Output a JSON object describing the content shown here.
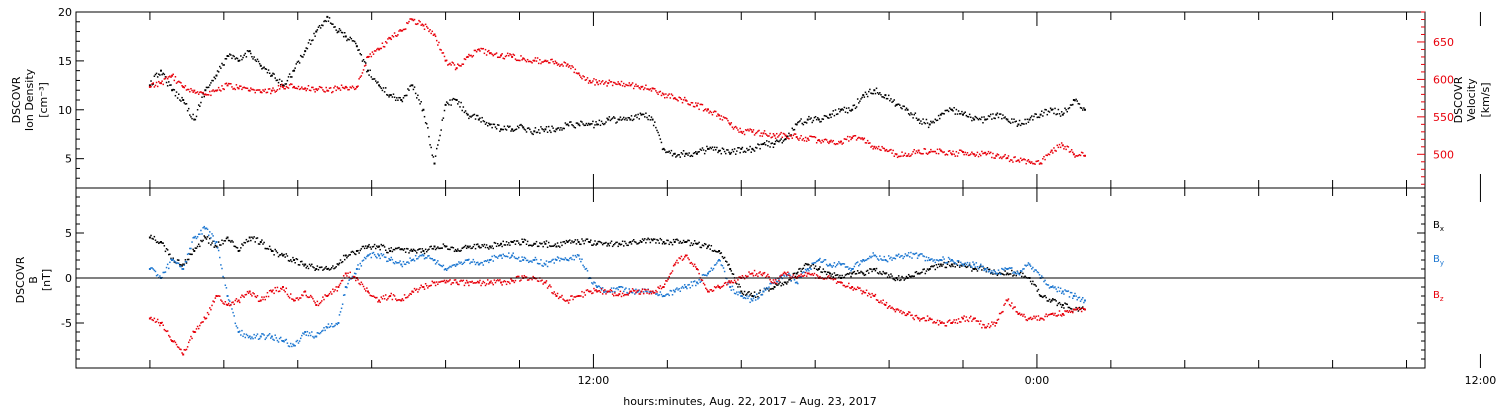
{
  "chart_data": [
    {
      "type": "scatter",
      "panel": "plasma",
      "ylabel_left": [
        "DSCOVR",
        "Ion Density",
        "[cm⁻³]"
      ],
      "ylabel_right": [
        "DSCOVR",
        "Velocity",
        "[km/s]"
      ],
      "ylim_left": [
        2,
        20
      ],
      "ylim_right": [
        455,
        690
      ],
      "yticks_left": [
        5,
        10,
        15,
        20
      ],
      "yticks_right": [
        500,
        550,
        600,
        650
      ],
      "grid": false,
      "series": [
        {
          "name": "Ion Density",
          "axis": "left",
          "color": "#000000",
          "x": [
            0.0,
            0.3,
            0.6,
            0.9,
            1.2,
            1.5,
            1.8,
            2.1,
            2.4,
            2.7,
            3.0,
            3.3,
            3.6,
            3.9,
            4.2,
            4.5,
            4.8,
            5.1,
            5.3,
            5.6,
            5.9,
            6.2,
            6.5,
            6.8,
            7.1,
            7.4,
            7.7,
            8.0,
            8.3,
            8.6,
            8.9,
            9.2,
            9.5,
            9.8,
            10.1,
            10.4,
            10.7,
            11.0,
            11.3,
            11.6,
            11.9,
            12.1,
            12.4,
            12.7,
            13.0,
            13.3,
            13.6,
            13.9,
            14.2,
            14.5,
            14.8,
            15.1,
            15.4,
            15.7,
            16.0,
            16.3,
            16.6,
            16.9,
            17.2,
            17.5,
            17.8,
            18.1,
            18.4,
            18.7,
            19.0,
            19.3,
            19.6,
            19.9,
            20.2,
            20.5,
            20.8,
            21.1,
            21.4,
            21.7,
            22.0,
            22.3,
            22.6,
            22.9,
            23.2,
            23.5,
            23.8,
            24.1,
            24.4,
            24.7,
            25.0,
            25.3
          ],
          "y": [
            12.5,
            14.0,
            12.0,
            11.0,
            9.0,
            12.0,
            13.5,
            15.5,
            15.0,
            16.0,
            14.5,
            13.5,
            12.5,
            14.0,
            16.0,
            18.0,
            19.5,
            18.0,
            17.5,
            16.5,
            14.0,
            12.5,
            11.5,
            11.0,
            12.5,
            10.0,
            4.5,
            10.5,
            11.0,
            9.5,
            9.0,
            8.5,
            8.0,
            8.0,
            8.2,
            7.8,
            8.0,
            8.0,
            8.5,
            8.5,
            8.5,
            8.5,
            9.0,
            9.0,
            9.0,
            9.5,
            9.0,
            6.0,
            5.5,
            5.5,
            5.5,
            6.0,
            5.8,
            5.5,
            6.0,
            6.0,
            6.5,
            6.5,
            7.0,
            8.5,
            9.0,
            9.0,
            9.5,
            10.0,
            10.0,
            11.5,
            12.0,
            11.5,
            10.5,
            10.0,
            9.0,
            8.5,
            9.5,
            10.0,
            9.5,
            9.0,
            9.0,
            9.5,
            9.0,
            8.5,
            9.0,
            9.5,
            10.0,
            9.5,
            11.0,
            10.0
          ]
        },
        {
          "name": "Velocity",
          "axis": "right",
          "color": "#e8000b",
          "x": [
            0.0,
            0.3,
            0.6,
            0.9,
            1.2,
            1.5,
            1.8,
            2.1,
            2.4,
            2.7,
            3.0,
            3.3,
            3.6,
            3.9,
            4.2,
            4.5,
            4.8,
            5.1,
            5.3,
            5.6,
            5.9,
            6.2,
            6.5,
            6.8,
            7.1,
            7.4,
            7.7,
            8.0,
            8.3,
            8.6,
            8.9,
            9.2,
            9.5,
            9.8,
            10.1,
            10.4,
            10.7,
            11.0,
            11.3,
            11.6,
            11.9,
            12.1,
            12.4,
            12.7,
            13.0,
            13.3,
            13.6,
            13.9,
            14.2,
            14.5,
            14.8,
            15.1,
            15.4,
            15.7,
            16.0,
            16.3,
            16.6,
            16.9,
            17.2,
            17.5,
            17.8,
            18.1,
            18.4,
            18.7,
            19.0,
            19.3,
            19.6,
            19.9,
            20.2,
            20.5,
            20.8,
            21.1,
            21.4,
            21.7,
            22.0,
            22.3,
            22.6,
            22.9,
            23.2,
            23.5,
            23.8,
            24.1,
            24.4,
            24.7,
            25.0,
            25.3
          ],
          "y": [
            590,
            595,
            605,
            590,
            585,
            580,
            585,
            592,
            588,
            585,
            583,
            585,
            590,
            590,
            588,
            587,
            585,
            588,
            590,
            590,
            630,
            640,
            655,
            665,
            680,
            672,
            660,
            625,
            615,
            630,
            640,
            635,
            632,
            630,
            628,
            625,
            625,
            622,
            620,
            608,
            598,
            596,
            595,
            594,
            592,
            590,
            588,
            580,
            575,
            572,
            565,
            560,
            552,
            540,
            530,
            530,
            528,
            525,
            525,
            523,
            521,
            519,
            517,
            517,
            522,
            520,
            510,
            505,
            500,
            498,
            505,
            503,
            505,
            500,
            503,
            500,
            502,
            498,
            495,
            492,
            490,
            488,
            505,
            512,
            500,
            498
          ]
        }
      ]
    },
    {
      "type": "scatter",
      "panel": "magnetic",
      "ylabel_left": [
        "DSCOVR",
        "B",
        "[nT]"
      ],
      "ylim": [
        -10,
        10
      ],
      "yticks": [
        -5,
        0,
        5
      ],
      "zero_line": true,
      "grid": false,
      "legend_position": "right",
      "series": [
        {
          "name": "Bx",
          "color": "#000000",
          "x": [
            0.0,
            0.3,
            0.6,
            0.9,
            1.2,
            1.5,
            1.8,
            2.1,
            2.4,
            2.7,
            3.0,
            3.3,
            3.6,
            3.9,
            4.2,
            4.5,
            4.8,
            5.1,
            5.3,
            5.6,
            5.9,
            6.2,
            6.5,
            6.8,
            7.1,
            7.4,
            7.7,
            8.0,
            8.3,
            8.6,
            8.9,
            9.2,
            9.5,
            9.8,
            10.1,
            10.4,
            10.7,
            11.0,
            11.3,
            11.6,
            11.9,
            12.1,
            12.4,
            12.7,
            13.0,
            13.3,
            13.6,
            13.9,
            14.2,
            14.5,
            14.8,
            15.1,
            15.4,
            15.7,
            16.0,
            16.3,
            16.6,
            16.9,
            17.2,
            17.5,
            17.8,
            18.1,
            18.4,
            18.7,
            19.0,
            19.3,
            19.6,
            19.9,
            20.2,
            20.5,
            20.8,
            21.1,
            21.4,
            21.7,
            22.0,
            22.3,
            22.6,
            22.9,
            23.2,
            23.5,
            23.8,
            24.1,
            24.4,
            24.7,
            25.0,
            25.3
          ],
          "y": [
            4.5,
            4.0,
            2.0,
            1.5,
            3.0,
            4.5,
            3.5,
            4.5,
            3.0,
            4.5,
            4.0,
            3.0,
            2.5,
            2.0,
            1.5,
            1.0,
            1.0,
            1.5,
            2.5,
            3.0,
            3.5,
            3.5,
            3.0,
            3.2,
            3.0,
            3.0,
            3.5,
            3.5,
            3.0,
            3.5,
            3.5,
            3.5,
            3.8,
            4.0,
            4.0,
            3.8,
            3.8,
            3.5,
            4.0,
            4.0,
            4.0,
            3.8,
            3.8,
            3.8,
            4.0,
            4.0,
            4.2,
            4.0,
            4.0,
            4.0,
            3.8,
            3.5,
            3.0,
            1.0,
            -1.5,
            -2.0,
            -1.5,
            -1.0,
            -0.5,
            0.5,
            1.5,
            1.0,
            0.5,
            0.0,
            0.5,
            0.5,
            1.0,
            0.5,
            0.0,
            0.0,
            0.5,
            1.0,
            1.5,
            1.5,
            1.5,
            1.0,
            1.0,
            0.5,
            0.5,
            0.5,
            0.0,
            -2.0,
            -2.5,
            -3.0,
            -3.5,
            -3.5
          ]
        },
        {
          "name": "By",
          "color": "#1f78d1",
          "x": [
            0.0,
            0.3,
            0.6,
            0.9,
            1.2,
            1.5,
            1.8,
            2.1,
            2.4,
            2.7,
            3.0,
            3.3,
            3.6,
            3.9,
            4.2,
            4.5,
            4.8,
            5.1,
            5.3,
            5.6,
            5.9,
            6.2,
            6.5,
            6.8,
            7.1,
            7.4,
            7.7,
            8.0,
            8.3,
            8.6,
            8.9,
            9.2,
            9.5,
            9.8,
            10.1,
            10.4,
            10.7,
            11.0,
            11.3,
            11.6,
            11.9,
            12.1,
            12.4,
            12.7,
            13.0,
            13.3,
            13.6,
            13.9,
            14.2,
            14.5,
            14.8,
            15.1,
            15.4,
            15.7,
            16.0,
            16.3,
            16.6,
            16.9,
            17.2,
            17.5,
            17.8,
            18.1,
            18.4,
            18.7,
            19.0,
            19.3,
            19.6,
            19.9,
            20.2,
            20.5,
            20.8,
            21.1,
            21.4,
            21.7,
            22.0,
            22.3,
            22.6,
            22.9,
            23.2,
            23.5,
            23.8,
            24.1,
            24.4,
            24.7,
            25.0,
            25.3
          ],
          "y": [
            1.0,
            0.0,
            2.0,
            1.0,
            4.5,
            5.5,
            4.0,
            -2.0,
            -6.0,
            -6.5,
            -6.5,
            -6.5,
            -7.0,
            -7.5,
            -6.0,
            -6.5,
            -5.5,
            -5.0,
            -1.0,
            1.0,
            2.5,
            2.5,
            2.0,
            1.5,
            2.0,
            2.5,
            2.0,
            1.0,
            1.5,
            2.0,
            1.5,
            2.0,
            2.5,
            2.5,
            2.0,
            2.0,
            1.5,
            2.0,
            2.0,
            2.5,
            0.0,
            -1.0,
            -1.5,
            -1.0,
            -1.5,
            -1.5,
            -1.5,
            -2.0,
            -1.5,
            -1.0,
            -0.5,
            0.5,
            2.0,
            -1.0,
            -2.0,
            -2.5,
            -1.5,
            -0.5,
            0.5,
            -0.5,
            1.0,
            2.0,
            1.5,
            1.5,
            1.0,
            2.0,
            2.5,
            2.0,
            2.5,
            2.5,
            2.5,
            2.0,
            2.0,
            2.0,
            1.5,
            1.5,
            1.0,
            0.5,
            1.0,
            0.5,
            1.5,
            0.0,
            -1.0,
            -1.5,
            -2.0,
            -2.5
          ]
        },
        {
          "name": "Bz",
          "color": "#e8000b",
          "x": [
            0.0,
            0.3,
            0.6,
            0.9,
            1.2,
            1.5,
            1.8,
            2.1,
            2.4,
            2.7,
            3.0,
            3.3,
            3.6,
            3.9,
            4.2,
            4.5,
            4.8,
            5.1,
            5.3,
            5.6,
            5.9,
            6.2,
            6.5,
            6.8,
            7.1,
            7.4,
            7.7,
            8.0,
            8.3,
            8.6,
            8.9,
            9.2,
            9.5,
            9.8,
            10.1,
            10.4,
            10.7,
            11.0,
            11.3,
            11.6,
            11.9,
            12.1,
            12.4,
            12.7,
            13.0,
            13.3,
            13.6,
            13.9,
            14.2,
            14.5,
            14.8,
            15.1,
            15.4,
            15.7,
            16.0,
            16.3,
            16.6,
            16.9,
            17.2,
            17.5,
            17.8,
            18.1,
            18.4,
            18.7,
            19.0,
            19.3,
            19.6,
            19.9,
            20.2,
            20.5,
            20.8,
            21.1,
            21.4,
            21.7,
            22.0,
            22.3,
            22.6,
            22.9,
            23.2,
            23.5,
            23.8,
            24.1,
            24.4,
            24.7,
            25.0,
            25.3
          ],
          "y": [
            -4.5,
            -5.0,
            -7.0,
            -8.5,
            -6.0,
            -4.5,
            -2.0,
            -3.0,
            -2.5,
            -1.5,
            -2.5,
            -1.5,
            -1.0,
            -2.5,
            -1.5,
            -3.0,
            -2.0,
            -1.0,
            0.5,
            0.0,
            -1.5,
            -2.5,
            -2.0,
            -2.5,
            -1.5,
            -1.0,
            -0.5,
            -0.5,
            -0.5,
            -0.5,
            -0.5,
            -0.5,
            -0.5,
            -0.3,
            0.0,
            0.0,
            -0.5,
            -2.0,
            -2.5,
            -2.0,
            -1.5,
            -1.5,
            -1.5,
            -1.8,
            -1.5,
            -1.5,
            -1.5,
            -1.0,
            1.5,
            2.5,
            1.0,
            -1.5,
            -1.0,
            -0.5,
            0.0,
            0.5,
            0.5,
            -0.5,
            0.5,
            0.0,
            0.5,
            0.0,
            0.0,
            -0.5,
            -1.0,
            -1.5,
            -2.0,
            -3.0,
            -3.5,
            -4.0,
            -4.5,
            -4.5,
            -5.0,
            -5.0,
            -4.5,
            -4.5,
            -5.5,
            -5.0,
            -2.5,
            -4.0,
            -4.5,
            -4.5,
            -4.0,
            -4.0,
            -3.5,
            -3.5
          ]
        }
      ]
    }
  ],
  "x_axis": {
    "title": "hours:minutes, Aug. 22, 2017 – Aug. 23, 2017",
    "xlim": [
      -2.0,
      34.5
    ],
    "major_ticks": [
      {
        "x": 12,
        "label": "12:00"
      },
      {
        "x": 24,
        "label": "0:00"
      },
      {
        "x": 36,
        "label": "12:00"
      }
    ],
    "minor_ticks": [
      0,
      2,
      4,
      6,
      8,
      10,
      14,
      16,
      18,
      20,
      22,
      26,
      28,
      30,
      32,
      34
    ]
  },
  "legend": {
    "bx": {
      "base": "B",
      "sub": "x",
      "color": "#000000"
    },
    "by": {
      "base": "B",
      "sub": "y",
      "color": "#1f78d1"
    },
    "bz": {
      "base": "B",
      "sub": "z",
      "color": "#e8000b"
    }
  },
  "colors": {
    "axis": "#000000",
    "velocity_axis": "#e8000b"
  }
}
